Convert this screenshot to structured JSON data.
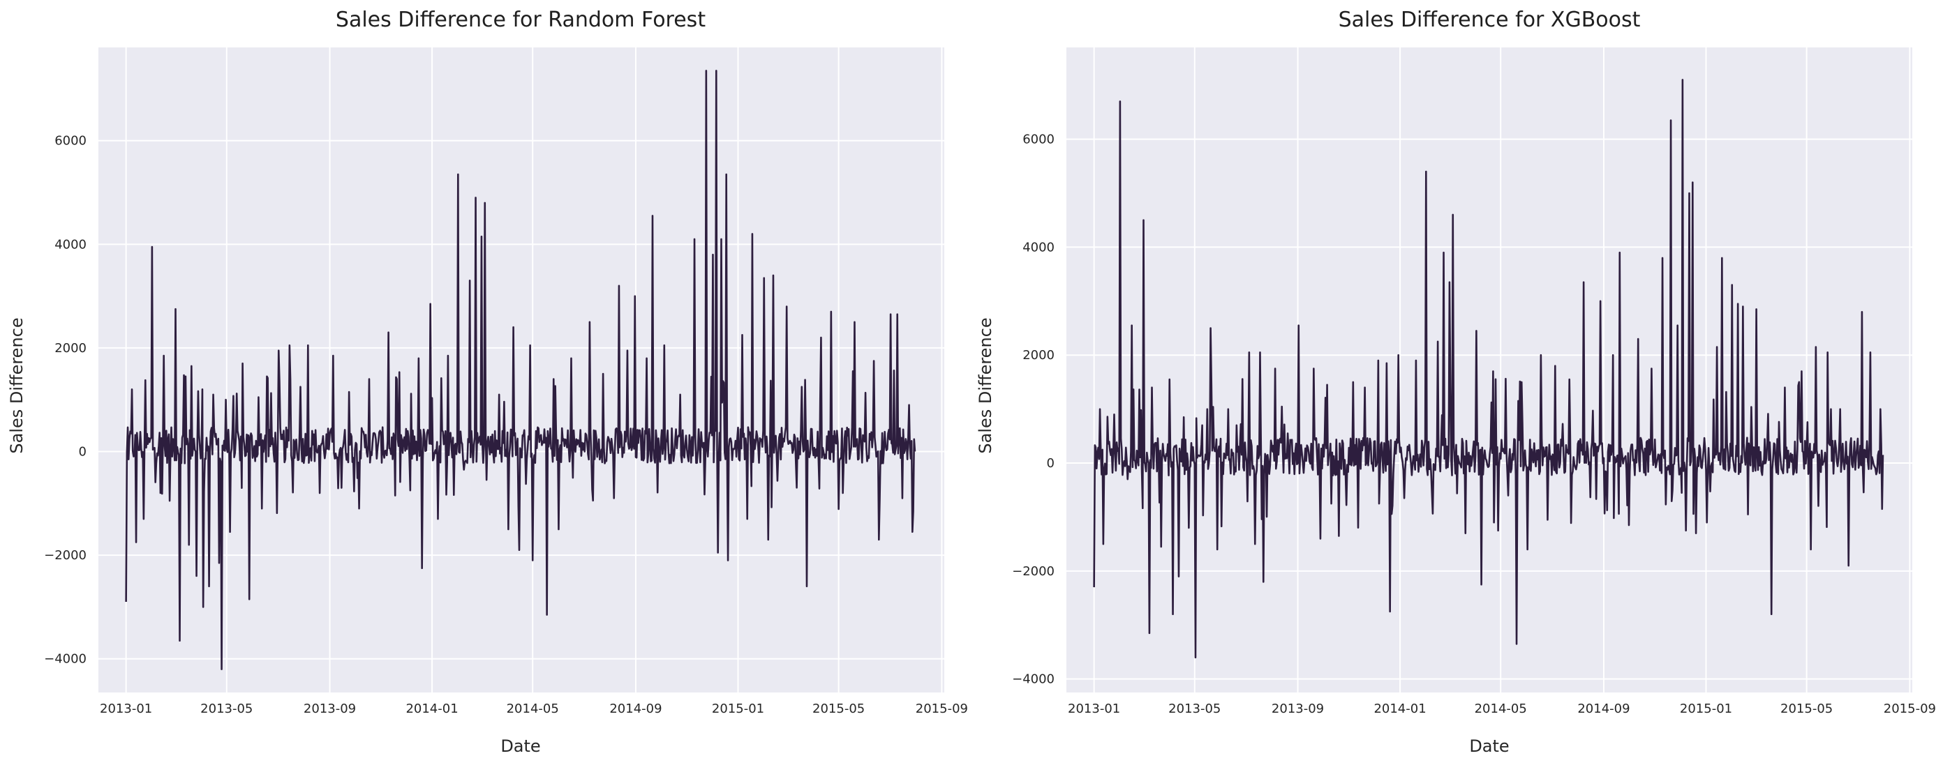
{
  "colors": {
    "plot_bg": "#eaeaf2",
    "grid": "#ffffff",
    "line": "#2d1e3e",
    "text": "#262626"
  },
  "chart_data": [
    {
      "type": "line",
      "title": "Sales Difference for Random Forest",
      "xlabel": "Date",
      "ylabel": "Sales Difference",
      "x_ticks": [
        "2013-01",
        "2013-05",
        "2013-09",
        "2014-01",
        "2014-05",
        "2014-09",
        "2015-01",
        "2015-05",
        "2015-09"
      ],
      "y_ticks": [
        -4000,
        -2000,
        0,
        2000,
        4000,
        6000
      ],
      "ylim": [
        -4650,
        7800
      ],
      "xlim": [
        "2012-11-29",
        "2015-09-04"
      ],
      "grid": true,
      "series": [
        {
          "x_start": "2013-01-01",
          "x_end": "2015-07-31",
          "keypoints": [
            [
              "2013-01-01",
              -2900
            ],
            [
              "2013-01-04",
              -150
            ],
            [
              "2013-01-08",
              1200
            ],
            [
              "2013-01-13",
              -1750
            ],
            [
              "2013-01-22",
              -1300
            ],
            [
              "2013-02-01",
              3950
            ],
            [
              "2013-02-11",
              -800
            ],
            [
              "2013-02-15",
              1850
            ],
            [
              "2013-02-22",
              -950
            ],
            [
              "2013-03-01",
              2750
            ],
            [
              "2013-03-06",
              -3650
            ],
            [
              "2013-03-13",
              1450
            ],
            [
              "2013-03-17",
              -1800
            ],
            [
              "2013-03-20",
              1650
            ],
            [
              "2013-03-26",
              -2400
            ],
            [
              "2013-04-02",
              1200
            ],
            [
              "2013-04-03",
              -3000
            ],
            [
              "2013-04-10",
              -2600
            ],
            [
              "2013-04-15",
              1100
            ],
            [
              "2013-04-22",
              -2150
            ],
            [
              "2013-04-25",
              -4200
            ],
            [
              "2013-04-30",
              1000
            ],
            [
              "2013-05-05",
              -1550
            ],
            [
              "2013-05-20",
              1700
            ],
            [
              "2013-05-28",
              -2850
            ],
            [
              "2013-06-08",
              1050
            ],
            [
              "2013-06-12",
              -1100
            ],
            [
              "2013-06-18",
              1450
            ],
            [
              "2013-07-02",
              1950
            ],
            [
              "2013-07-15",
              2050
            ],
            [
              "2013-07-28",
              1250
            ],
            [
              "2013-08-06",
              2050
            ],
            [
              "2013-08-20",
              -800
            ],
            [
              "2013-09-05",
              1850
            ],
            [
              "2013-09-15",
              -700
            ],
            [
              "2013-09-24",
              1150
            ],
            [
              "2013-10-06",
              -1100
            ],
            [
              "2013-10-18",
              1400
            ],
            [
              "2013-11-10",
              2300
            ],
            [
              "2013-11-20",
              1400
            ],
            [
              "2013-12-06",
              -750
            ],
            [
              "2013-12-16",
              1800
            ],
            [
              "2013-12-20",
              -2250
            ],
            [
              "2013-12-30",
              2850
            ],
            [
              "2014-01-08",
              -1300
            ],
            [
              "2014-01-20",
              1850
            ],
            [
              "2014-02-01",
              5350
            ],
            [
              "2014-02-08",
              -350
            ],
            [
              "2014-02-15",
              3300
            ],
            [
              "2014-02-22",
              4900
            ],
            [
              "2014-03-01",
              4150
            ],
            [
              "2014-03-05",
              4800
            ],
            [
              "2014-03-22",
              1100
            ],
            [
              "2014-04-02",
              -1500
            ],
            [
              "2014-04-08",
              2400
            ],
            [
              "2014-04-15",
              -1900
            ],
            [
              "2014-04-28",
              2050
            ],
            [
              "2014-05-01",
              -2100
            ],
            [
              "2014-05-18",
              -3150
            ],
            [
              "2014-05-26",
              1400
            ],
            [
              "2014-06-01",
              -1500
            ],
            [
              "2014-06-16",
              1800
            ],
            [
              "2014-07-08",
              2500
            ],
            [
              "2014-07-24",
              1500
            ],
            [
              "2014-08-06",
              -900
            ],
            [
              "2014-08-12",
              3200
            ],
            [
              "2014-08-22",
              1950
            ],
            [
              "2014-08-31",
              3000
            ],
            [
              "2014-09-14",
              1800
            ],
            [
              "2014-09-21",
              4550
            ],
            [
              "2014-10-05",
              2050
            ],
            [
              "2014-10-24",
              1100
            ],
            [
              "2014-11-10",
              4100
            ],
            [
              "2014-11-24",
              7350
            ],
            [
              "2014-12-02",
              3800
            ],
            [
              "2014-12-06",
              7350
            ],
            [
              "2014-12-08",
              -1950
            ],
            [
              "2014-12-12",
              4100
            ],
            [
              "2014-12-18",
              5350
            ],
            [
              "2014-12-20",
              -2100
            ],
            [
              "2015-01-06",
              2250
            ],
            [
              "2015-01-12",
              -1300
            ],
            [
              "2015-01-18",
              4200
            ],
            [
              "2015-02-01",
              3350
            ],
            [
              "2015-02-06",
              -1700
            ],
            [
              "2015-02-12",
              3400
            ],
            [
              "2015-02-28",
              2800
            ],
            [
              "2015-03-18",
              1250
            ],
            [
              "2015-03-24",
              -2600
            ],
            [
              "2015-04-10",
              2200
            ],
            [
              "2015-04-22",
              2700
            ],
            [
              "2015-05-06",
              -800
            ],
            [
              "2015-05-18",
              1550
            ],
            [
              "2015-05-20",
              2500
            ],
            [
              "2015-06-12",
              1750
            ],
            [
              "2015-06-18",
              -1700
            ],
            [
              "2015-07-02",
              2650
            ],
            [
              "2015-07-10",
              2650
            ],
            [
              "2015-07-16",
              -900
            ],
            [
              "2015-07-24",
              900
            ],
            [
              "2015-07-28",
              -1550
            ],
            [
              "2015-07-31",
              0
            ]
          ]
        }
      ]
    },
    {
      "type": "line",
      "title": "Sales Difference for XGBoost",
      "xlabel": "Date",
      "ylabel": "Sales Difference",
      "x_ticks": [
        "2013-01",
        "2013-05",
        "2013-09",
        "2014-01",
        "2014-05",
        "2014-09",
        "2015-01",
        "2015-05",
        "2015-09"
      ],
      "y_ticks": [
        -4000,
        -2000,
        0,
        2000,
        4000,
        6000
      ],
      "ylim": [
        -4250,
        7700
      ],
      "xlim": [
        "2012-11-29",
        "2015-09-04"
      ],
      "grid": true,
      "series": [
        {
          "x_start": "2013-01-01",
          "x_end": "2015-07-31",
          "keypoints": [
            [
              "2013-01-01",
              -2300
            ],
            [
              "2013-01-04",
              -100
            ],
            [
              "2013-01-08",
              1000
            ],
            [
              "2013-01-12",
              -1500
            ],
            [
              "2013-01-25",
              900
            ],
            [
              "2013-02-01",
              6700
            ],
            [
              "2013-02-10",
              -300
            ],
            [
              "2013-02-15",
              2550
            ],
            [
              "2013-03-01",
              4500
            ],
            [
              "2013-03-08",
              -3150
            ],
            [
              "2013-03-22",
              -1550
            ],
            [
              "2013-04-01",
              1550
            ],
            [
              "2013-04-05",
              -2800
            ],
            [
              "2013-04-12",
              -2100
            ],
            [
              "2013-04-18",
              850
            ],
            [
              "2013-04-24",
              -1200
            ],
            [
              "2013-05-02",
              -3600
            ],
            [
              "2013-05-10",
              700
            ],
            [
              "2013-05-20",
              2500
            ],
            [
              "2013-05-28",
              -1600
            ],
            [
              "2013-06-10",
              1000
            ],
            [
              "2013-06-20",
              700
            ],
            [
              "2013-07-05",
              2050
            ],
            [
              "2013-07-12",
              -1500
            ],
            [
              "2013-07-18",
              2050
            ],
            [
              "2013-07-22",
              -2200
            ],
            [
              "2013-08-05",
              1750
            ],
            [
              "2013-08-20",
              550
            ],
            [
              "2013-09-02",
              2550
            ],
            [
              "2013-09-20",
              1750
            ],
            [
              "2013-09-28",
              -1400
            ],
            [
              "2013-10-06",
              1450
            ],
            [
              "2013-10-20",
              -1350
            ],
            [
              "2013-11-06",
              1500
            ],
            [
              "2013-11-20",
              1400
            ],
            [
              "2013-12-06",
              1900
            ],
            [
              "2013-12-16",
              1850
            ],
            [
              "2013-12-20",
              -2750
            ],
            [
              "2013-12-30",
              2000
            ],
            [
              "2014-01-06",
              -650
            ],
            [
              "2014-01-20",
              1900
            ],
            [
              "2014-02-01",
              5400
            ],
            [
              "2014-02-08",
              -550
            ],
            [
              "2014-02-15",
              2250
            ],
            [
              "2014-02-22",
              3900
            ],
            [
              "2014-03-01",
              3350
            ],
            [
              "2014-03-05",
              4600
            ],
            [
              "2014-03-20",
              -1300
            ],
            [
              "2014-04-02",
              2450
            ],
            [
              "2014-04-08",
              -2250
            ],
            [
              "2014-04-22",
              1700
            ],
            [
              "2014-04-28",
              -1250
            ],
            [
              "2014-05-20",
              -3350
            ],
            [
              "2014-05-26",
              1500
            ],
            [
              "2014-06-02",
              -1600
            ],
            [
              "2014-06-18",
              2000
            ],
            [
              "2014-07-05",
              1800
            ],
            [
              "2014-07-22",
              1550
            ],
            [
              "2014-08-08",
              3350
            ],
            [
              "2014-08-28",
              3000
            ],
            [
              "2014-09-12",
              2000
            ],
            [
              "2014-09-20",
              3900
            ],
            [
              "2014-10-01",
              -1150
            ],
            [
              "2014-10-12",
              2300
            ],
            [
              "2014-10-28",
              1750
            ],
            [
              "2014-11-10",
              3800
            ],
            [
              "2014-11-20",
              6350
            ],
            [
              "2014-11-28",
              2550
            ],
            [
              "2014-12-04",
              7100
            ],
            [
              "2014-12-08",
              -1250
            ],
            [
              "2014-12-12",
              5000
            ],
            [
              "2014-12-16",
              5200
            ],
            [
              "2014-12-20",
              -1300
            ],
            [
              "2015-01-02",
              -1100
            ],
            [
              "2015-01-14",
              2150
            ],
            [
              "2015-01-20",
              3800
            ],
            [
              "2015-02-01",
              3300
            ],
            [
              "2015-02-08",
              2950
            ],
            [
              "2015-02-14",
              2900
            ],
            [
              "2015-02-20",
              -950
            ],
            [
              "2015-03-02",
              2850
            ],
            [
              "2015-03-20",
              -2800
            ],
            [
              "2015-04-05",
              1400
            ],
            [
              "2015-04-25",
              1700
            ],
            [
              "2015-05-06",
              -1600
            ],
            [
              "2015-05-12",
              2150
            ],
            [
              "2015-05-26",
              2050
            ],
            [
              "2015-06-10",
              1000
            ],
            [
              "2015-06-20",
              -1900
            ],
            [
              "2015-07-06",
              2800
            ],
            [
              "2015-07-16",
              2050
            ],
            [
              "2015-07-28",
              1000
            ],
            [
              "2015-07-30",
              -850
            ],
            [
              "2015-07-31",
              150
            ]
          ]
        }
      ]
    }
  ]
}
